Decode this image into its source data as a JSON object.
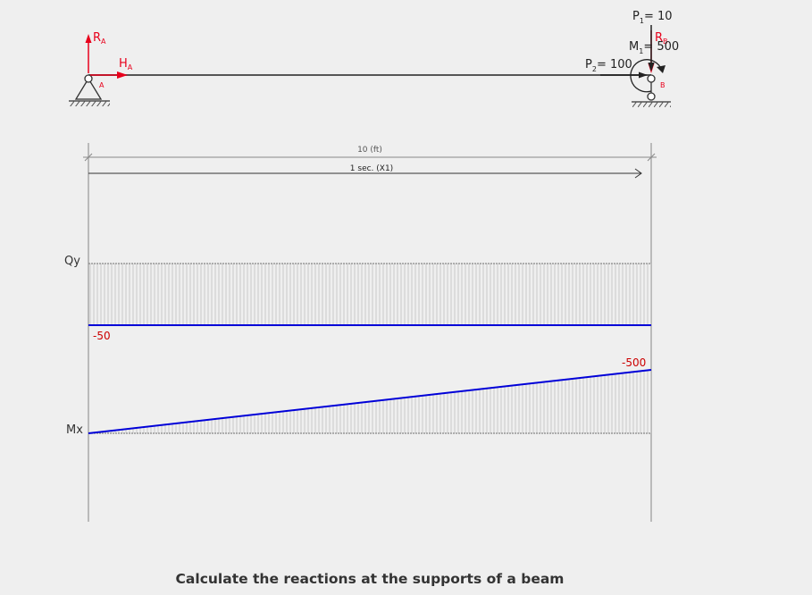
{
  "caption": "Calculate the reactions at the supports of a beam",
  "beam": {
    "support_a": {
      "label": "A",
      "reaction_vertical": {
        "main": "R",
        "sub": "A"
      },
      "reaction_horizontal": {
        "main": "H",
        "sub": "A"
      }
    },
    "support_b": {
      "label": "B",
      "reaction_vertical": {
        "main": "R",
        "sub": "B"
      }
    },
    "loads": [
      {
        "id": "P1",
        "main": "P",
        "sub": "1",
        "text": "= 10"
      },
      {
        "id": "M1",
        "main": "M",
        "sub": "1",
        "text": "= 500"
      },
      {
        "id": "P2",
        "main": "P",
        "sub": "2",
        "text": "= 100"
      }
    ],
    "span_label": "10 (ft)",
    "section_label": "1 sec. (X1)"
  },
  "diagrams": {
    "shear": {
      "label": "Qy",
      "value_label": "-50"
    },
    "moment": {
      "label": "Mx",
      "value_label": "-500"
    }
  },
  "colors": {
    "reaction": "#e8001c",
    "diagram_line": "#0000d8",
    "value_label": "#cc0000",
    "ink": "#222222",
    "hatch": "#c8c8c8",
    "axis": "#a8a8a8"
  },
  "chart_data": [
    {
      "type": "line",
      "name_label": "Qy",
      "x": [
        0,
        10
      ],
      "y": [
        -50,
        -50
      ],
      "xlim": [
        0,
        10
      ],
      "annotations": [
        "-50"
      ]
    },
    {
      "type": "line",
      "name_label": "Mx",
      "x": [
        0,
        10
      ],
      "y": [
        0,
        -500
      ],
      "xlim": [
        0,
        10
      ],
      "annotations": [
        "-500"
      ]
    }
  ]
}
